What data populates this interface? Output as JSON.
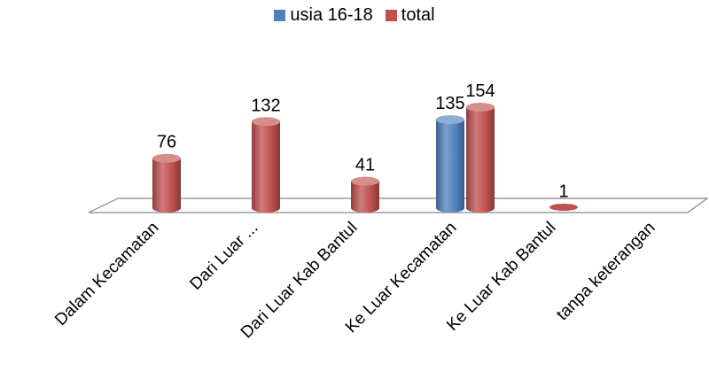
{
  "chart_data": {
    "type": "bar",
    "categories": [
      "Dalam Kecamatan",
      "Dari Luar ...",
      "Dari Luar Kab Bantul",
      "Ke Luar Kecamatan",
      "Ke Luar Kab Bantul",
      "tanpa keterangan"
    ],
    "series": [
      {
        "name": "usia 16-18",
        "values": [
          null,
          null,
          null,
          135,
          null,
          null
        ],
        "color": "#4f81bd"
      },
      {
        "name": "total",
        "values": [
          76,
          132,
          41,
          154,
          1,
          null
        ],
        "color": "#c0504d"
      }
    ],
    "ylim": [
      0,
      160
    ],
    "grid": false,
    "legend_position": "top",
    "style": "3d-cylinder"
  }
}
